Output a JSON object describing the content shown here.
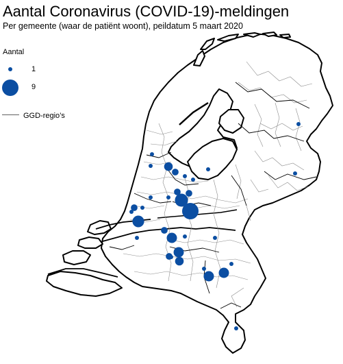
{
  "title": "Aantal Coronavirus (COVID-19)-meldingen",
  "subtitle": "Per gemeente (waar de patiënt woont), peildatum 5 maart 2020",
  "legend": {
    "title": "Aantal",
    "items": [
      {
        "label": "1",
        "value": 1
      },
      {
        "label": "9",
        "value": 9
      }
    ],
    "ggd_label": "GGD-regio’s"
  },
  "colors": {
    "marker": "#0b4ea2",
    "border": "#000000",
    "municipality": "#8c8c8c",
    "water": "#ffffff"
  },
  "markers": [
    {
      "id": "zaanstad",
      "value": 1
    },
    {
      "id": "haarlem",
      "value": 1
    },
    {
      "id": "amsterdam",
      "value": 3
    },
    {
      "id": "amstelveen",
      "value": 2
    },
    {
      "id": "almere",
      "value": 1
    },
    {
      "id": "hilversum",
      "value": 1
    },
    {
      "id": "leiden",
      "value": 1
    },
    {
      "id": "alphen",
      "value": 1
    },
    {
      "id": "utrecht-west",
      "value": 2
    },
    {
      "id": "den-haag",
      "value": 2
    },
    {
      "id": "delft",
      "value": 1
    },
    {
      "id": "zoetermeer",
      "value": 1
    },
    {
      "id": "rotterdam",
      "value": 5
    },
    {
      "id": "utrecht",
      "value": 6
    },
    {
      "id": "zeist",
      "value": 2
    },
    {
      "id": "nieuwegein",
      "value": 9
    },
    {
      "id": "houten",
      "value": 1
    },
    {
      "id": "dordrecht",
      "value": 2
    },
    {
      "id": "gorinchem",
      "value": 4
    },
    {
      "id": "s-hertogenbosch",
      "value": 1
    },
    {
      "id": "tilburg-noord",
      "value": 1
    },
    {
      "id": "tilburg",
      "value": 4
    },
    {
      "id": "breda",
      "value": 3
    },
    {
      "id": "hellevoetsluis",
      "value": 1
    },
    {
      "id": "eindhoven",
      "value": 4
    },
    {
      "id": "helmond",
      "value": 4
    },
    {
      "id": "veldhoven",
      "value": 1
    },
    {
      "id": "nuenen",
      "value": 1
    },
    {
      "id": "uden",
      "value": 1
    },
    {
      "id": "apeldoorn",
      "value": 1
    },
    {
      "id": "enschede",
      "value": 1
    },
    {
      "id": "emmen",
      "value": 2
    },
    {
      "id": "maastricht",
      "value": 1
    }
  ]
}
